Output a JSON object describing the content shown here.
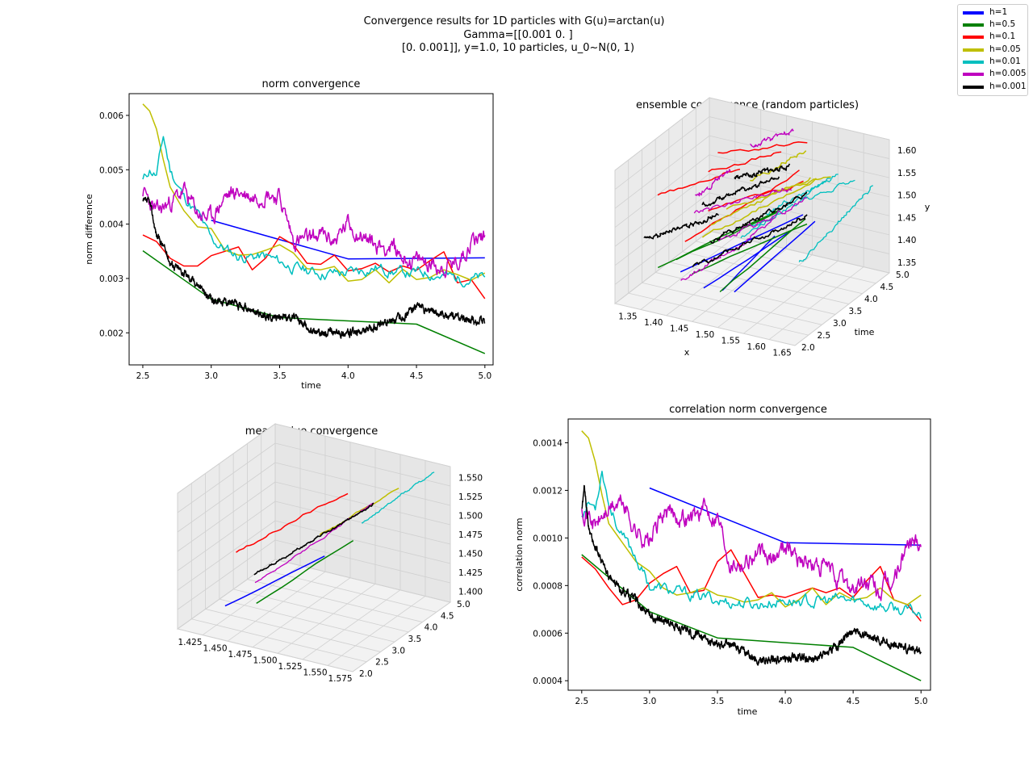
{
  "figure": {
    "suptitle_lines": [
      "Convergence results for 1D particles with G(u)=arctan(u)",
      "Gamma=[[0.001 0.   ]",
      "[0.    0.001]], y=1.0, 10 particles, u_0~N(0, 1)"
    ]
  },
  "legend": [
    {
      "label": "h=1",
      "color": "#0000ff"
    },
    {
      "label": "h=0.5",
      "color": "#008000"
    },
    {
      "label": "h=0.1",
      "color": "#ff0000"
    },
    {
      "label": "h=0.05",
      "color": "#bfbf00"
    },
    {
      "label": "h=0.01",
      "color": "#00bfbf"
    },
    {
      "label": "h=0.005",
      "color": "#bf00bf"
    },
    {
      "label": "h=0.001",
      "color": "#000000"
    }
  ],
  "chart_data": [
    {
      "type": "line",
      "title": "norm convergence",
      "xlabel": "time",
      "ylabel": "norm difference",
      "xlim": [
        2.4,
        5.06
      ],
      "ylim": [
        0.00141,
        0.0064
      ],
      "xticks": [
        "2.5",
        "3.0",
        "3.5",
        "4.0",
        "4.5",
        "5.0"
      ],
      "xtick_values": [
        2.5,
        3.0,
        3.5,
        4.0,
        4.5,
        5.0
      ],
      "yticks": [
        "0.002",
        "0.003",
        "0.004",
        "0.005",
        "0.006"
      ],
      "ytick_values": [
        0.002,
        0.003,
        0.004,
        0.005,
        0.006
      ],
      "series": [
        {
          "name": "h=1",
          "color": "#0000ff",
          "x": [
            3.0,
            4.0,
            5.0
          ],
          "y": [
            0.00407,
            0.00336,
            0.00338
          ]
        },
        {
          "name": "h=0.5",
          "color": "#008000",
          "x": [
            2.5,
            3.0,
            3.5,
            4.0,
            4.5,
            5.0
          ],
          "y": [
            0.00351,
            0.00262,
            0.00228,
            0.00222,
            0.00216,
            0.00162
          ]
        },
        {
          "name": "h=0.1",
          "color": "#ff0000",
          "x": [
            2.5,
            2.6,
            2.7,
            2.8,
            2.9,
            3.0,
            3.1,
            3.2,
            3.3,
            3.4,
            3.5,
            3.6,
            3.7,
            3.8,
            3.9,
            4.0,
            4.1,
            4.2,
            4.3,
            4.4,
            4.5,
            4.6,
            4.7,
            4.8,
            4.9,
            5.0
          ],
          "y": [
            0.0038,
            0.00368,
            0.00337,
            0.00323,
            0.00323,
            0.00342,
            0.0035,
            0.00358,
            0.00316,
            0.00338,
            0.00377,
            0.00362,
            0.00328,
            0.00326,
            0.00343,
            0.00314,
            0.00318,
            0.00328,
            0.00312,
            0.00323,
            0.00315,
            0.00333,
            0.00349,
            0.00292,
            0.00298,
            0.00263
          ]
        },
        {
          "name": "h=0.05",
          "color": "#bfbf00",
          "x": [
            2.5,
            2.55,
            2.6,
            2.65,
            2.7,
            2.8,
            2.9,
            3.0,
            3.1,
            3.2,
            3.3,
            3.4,
            3.5,
            3.6,
            3.7,
            3.8,
            3.9,
            4.0,
            4.1,
            4.2,
            4.3,
            4.4,
            4.5,
            4.6,
            4.7,
            4.8,
            4.9,
            5.0
          ],
          "y": [
            0.00621,
            0.00608,
            0.00575,
            0.00518,
            0.00468,
            0.00425,
            0.00395,
            0.00392,
            0.00352,
            0.00343,
            0.00344,
            0.00352,
            0.00362,
            0.00347,
            0.00318,
            0.00316,
            0.00322,
            0.00295,
            0.00298,
            0.00316,
            0.00292,
            0.00317,
            0.00298,
            0.00302,
            0.00316,
            0.00307,
            0.00297,
            0.0031
          ]
        },
        {
          "name": "h=0.01",
          "color": "#00bfbf",
          "generator": {
            "knots_x": [
              2.5,
              2.55,
              2.6,
              2.65,
              2.7,
              2.8,
              2.9,
              3.0,
              3.2,
              3.4,
              3.6,
              3.8,
              4.0,
              4.2,
              4.4,
              4.6,
              4.8,
              5.0
            ],
            "knots_y": [
              0.0048,
              0.005,
              0.0049,
              0.0056,
              0.005,
              0.0045,
              0.0042,
              0.0037,
              0.0034,
              0.0034,
              0.0032,
              0.0031,
              0.0031,
              0.0032,
              0.0031,
              0.0031,
              0.003,
              0.003
            ],
            "step": 0.01,
            "noise": 8e-05,
            "seed": 11
          }
        },
        {
          "name": "h=0.005",
          "color": "#bf00bf",
          "generator": {
            "knots_x": [
              2.5,
              2.6,
              2.7,
              2.8,
              2.9,
              3.0,
              3.1,
              3.2,
              3.3,
              3.4,
              3.5,
              3.6,
              3.7,
              3.8,
              3.9,
              4.0,
              4.1,
              4.2,
              4.3,
              4.4,
              4.5,
              4.6,
              4.7,
              4.8,
              4.9,
              5.0
            ],
            "knots_y": [
              0.0046,
              0.0042,
              0.0044,
              0.0046,
              0.0042,
              0.0041,
              0.0045,
              0.0046,
              0.0045,
              0.0046,
              0.0045,
              0.0037,
              0.0037,
              0.0038,
              0.0037,
              0.004,
              0.0038,
              0.0036,
              0.0036,
              0.0034,
              0.0033,
              0.0033,
              0.0032,
              0.0033,
              0.0037,
              0.0038
            ],
            "step": 0.005,
            "noise": 0.00012,
            "seed": 23
          }
        },
        {
          "name": "h=0.001",
          "color": "#000000",
          "generator": {
            "knots_x": [
              2.5,
              2.55,
              2.6,
              2.65,
              2.7,
              2.8,
              2.9,
              3.0,
              3.1,
              3.2,
              3.3,
              3.4,
              3.5,
              3.6,
              3.7,
              3.8,
              3.9,
              4.0,
              4.1,
              4.2,
              4.3,
              4.4,
              4.5,
              4.6,
              4.7,
              4.8,
              4.9,
              5.0
            ],
            "knots_y": [
              0.0044,
              0.0044,
              0.0038,
              0.0036,
              0.0033,
              0.0031,
              0.0029,
              0.0026,
              0.0026,
              0.0025,
              0.0024,
              0.0023,
              0.0023,
              0.0023,
              0.0021,
              0.002,
              0.002,
              0.002,
              0.002,
              0.0021,
              0.0022,
              0.0023,
              0.0025,
              0.0024,
              0.0023,
              0.0023,
              0.0022,
              0.0022
            ],
            "step": 0.002,
            "noise": 5e-05,
            "seed": 37
          }
        }
      ]
    },
    {
      "type": "line",
      "title": "correlation norm convergence",
      "xlabel": "time",
      "ylabel": "correlation norm",
      "xlim": [
        2.4,
        5.07
      ],
      "ylim": [
        0.00036,
        0.0015
      ],
      "xticks": [
        "2.5",
        "3.0",
        "3.5",
        "4.0",
        "4.5",
        "5.0"
      ],
      "xtick_values": [
        2.5,
        3.0,
        3.5,
        4.0,
        4.5,
        5.0
      ],
      "yticks": [
        "0.0004",
        "0.0006",
        "0.0008",
        "0.0010",
        "0.0012",
        "0.0014"
      ],
      "ytick_values": [
        0.0004,
        0.0006,
        0.0008,
        0.001,
        0.0012,
        0.0014
      ],
      "series": [
        {
          "name": "h=1",
          "color": "#0000ff",
          "x": [
            3.0,
            4.0,
            5.0
          ],
          "y": [
            0.00121,
            0.00098,
            0.00097
          ]
        },
        {
          "name": "h=0.5",
          "color": "#008000",
          "x": [
            2.5,
            3.0,
            3.5,
            4.0,
            4.5,
            5.0
          ],
          "y": [
            0.00093,
            0.00069,
            0.00058,
            0.00056,
            0.00054,
            0.0004
          ]
        },
        {
          "name": "h=0.1",
          "color": "#ff0000",
          "x": [
            2.5,
            2.6,
            2.7,
            2.8,
            2.9,
            3.0,
            3.1,
            3.2,
            3.3,
            3.4,
            3.5,
            3.6,
            3.7,
            3.8,
            3.9,
            4.0,
            4.1,
            4.2,
            4.3,
            4.4,
            4.5,
            4.6,
            4.7,
            4.8,
            4.9,
            5.0
          ],
          "y": [
            0.00092,
            0.00087,
            0.00079,
            0.00072,
            0.00074,
            0.00081,
            0.00085,
            0.00088,
            0.00077,
            0.00078,
            0.0009,
            0.00095,
            0.00085,
            0.00075,
            0.00076,
            0.00075,
            0.00077,
            0.00079,
            0.00077,
            0.00079,
            0.00075,
            0.00082,
            0.00088,
            0.00074,
            0.00072,
            0.00065
          ]
        },
        {
          "name": "h=0.05",
          "color": "#bfbf00",
          "x": [
            2.5,
            2.55,
            2.6,
            2.65,
            2.7,
            2.8,
            2.9,
            3.0,
            3.1,
            3.2,
            3.3,
            3.4,
            3.5,
            3.6,
            3.7,
            3.8,
            3.9,
            4.0,
            4.1,
            4.2,
            4.3,
            4.4,
            4.5,
            4.6,
            4.7,
            4.8,
            4.9,
            5.0
          ],
          "y": [
            0.00145,
            0.00142,
            0.00132,
            0.00118,
            0.00106,
            0.00098,
            0.0009,
            0.00086,
            0.00079,
            0.00076,
            0.00077,
            0.00079,
            0.00076,
            0.00075,
            0.00073,
            0.00074,
            0.00077,
            0.00071,
            0.00074,
            0.00079,
            0.00072,
            0.00077,
            0.00074,
            0.00075,
            0.00079,
            0.00074,
            0.00072,
            0.00076
          ]
        },
        {
          "name": "h=0.01",
          "color": "#00bfbf",
          "generator": {
            "knots_x": [
              2.5,
              2.55,
              2.6,
              2.65,
              2.7,
              2.8,
              2.9,
              3.0,
              3.2,
              3.4,
              3.6,
              3.8,
              4.0,
              4.2,
              4.4,
              4.6,
              4.8,
              5.0
            ],
            "knots_y": [
              0.0011,
              0.00115,
              0.00113,
              0.0013,
              0.00115,
              0.001,
              0.00092,
              0.0008,
              0.00077,
              0.00075,
              0.00073,
              0.00072,
              0.00074,
              0.00073,
              0.00074,
              0.00073,
              0.0007,
              0.00068
            ],
            "step": 0.01,
            "noise": 2e-05,
            "seed": 53
          }
        },
        {
          "name": "h=0.005",
          "color": "#bf00bf",
          "generator": {
            "knots_x": [
              2.5,
              2.6,
              2.7,
              2.8,
              2.9,
              3.0,
              3.1,
              3.2,
              3.3,
              3.4,
              3.5,
              3.6,
              3.7,
              3.8,
              3.9,
              4.0,
              4.1,
              4.2,
              4.3,
              4.4,
              4.5,
              4.6,
              4.7,
              4.8,
              4.9,
              5.0
            ],
            "knots_y": [
              0.00115,
              0.00105,
              0.00112,
              0.00115,
              0.00103,
              0.00098,
              0.0011,
              0.0011,
              0.00108,
              0.00112,
              0.0011,
              0.0009,
              0.00091,
              0.00093,
              0.0009,
              0.00098,
              0.00092,
              0.00088,
              0.00087,
              0.00082,
              0.00079,
              0.00081,
              0.00077,
              0.00082,
              0.00097,
              0.001
            ],
            "step": 0.005,
            "noise": 3e-05,
            "seed": 71
          }
        },
        {
          "name": "h=0.001",
          "color": "#000000",
          "generator": {
            "knots_x": [
              2.5,
              2.52,
              2.55,
              2.6,
              2.65,
              2.7,
              2.8,
              2.9,
              3.0,
              3.1,
              3.2,
              3.3,
              3.4,
              3.5,
              3.6,
              3.7,
              3.8,
              3.9,
              4.0,
              4.1,
              4.2,
              4.3,
              4.4,
              4.5,
              4.6,
              4.7,
              4.8,
              4.9,
              5.0
            ],
            "knots_y": [
              0.00112,
              0.00122,
              0.00105,
              0.00095,
              0.0009,
              0.00083,
              0.00078,
              0.00074,
              0.00067,
              0.00066,
              0.00063,
              0.0006,
              0.00058,
              0.00055,
              0.00055,
              0.00052,
              0.00048,
              0.00049,
              0.00049,
              0.0005,
              0.00049,
              0.00052,
              0.00055,
              0.00061,
              0.00059,
              0.00057,
              0.00055,
              0.00053,
              0.00053
            ],
            "step": 0.002,
            "noise": 1.2e-05,
            "seed": 89
          }
        }
      ]
    },
    {
      "type": "line3d",
      "title": "ensemble convergence (random particles)",
      "xlabel": "x",
      "ylabel": "time",
      "zlabel": "y",
      "xticks": [
        "1.35",
        "1.40",
        "1.45",
        "1.50",
        "1.55",
        "1.60",
        "1.65"
      ],
      "yticks": [
        "2.0",
        "2.5",
        "3.0",
        "3.5",
        "4.0",
        "4.5",
        "5.0"
      ],
      "zticks": [
        "1.35",
        "1.40",
        "1.45",
        "1.50",
        "1.55",
        "1.60"
      ]
    },
    {
      "type": "line3d",
      "title": "mean value convergence",
      "xlabel": "",
      "ylabel": "",
      "zlabel": "",
      "xticks": [
        "1.425",
        "1.450",
        "1.475",
        "1.500",
        "1.525",
        "1.550",
        "1.575"
      ],
      "yticks": [
        "2.0",
        "2.5",
        "3.0",
        "3.5",
        "4.0",
        "4.5",
        "5.0"
      ],
      "zticks": [
        "1.400",
        "1.425",
        "1.450",
        "1.475",
        "1.500",
        "1.525",
        "1.550"
      ]
    }
  ]
}
